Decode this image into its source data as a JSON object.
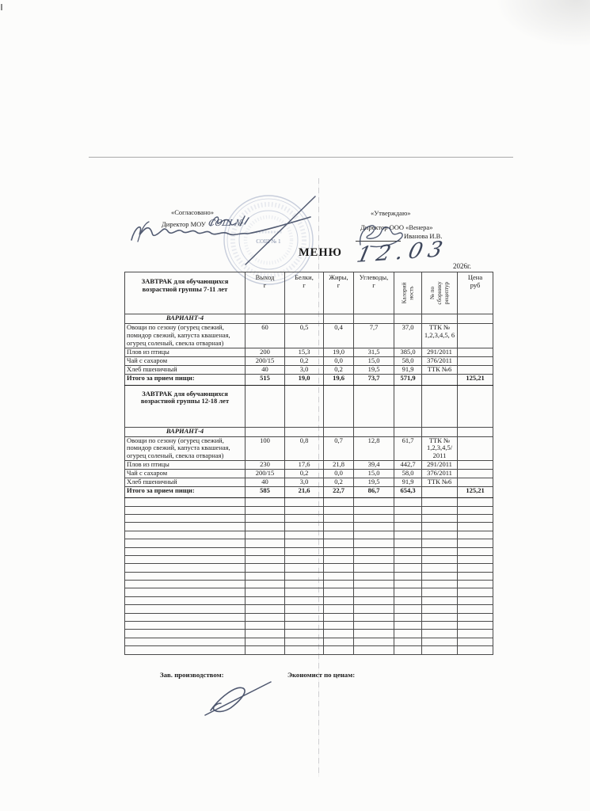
{
  "document": {
    "agreed": {
      "label": "«Согласовано»",
      "role": "Директор МОУ",
      "school_handwritten": "СОШ №"
    },
    "approved": {
      "label": "«Утверждаю»",
      "role": "Директор ООО «Венера»",
      "name": "Иванова И.В."
    },
    "title": "МЕНЮ",
    "date_handwritten": "12.03",
    "year": "2026г.",
    "stamp": {
      "center_text": "СОШ № 1"
    },
    "footer": {
      "left_label": "Зав. производством:",
      "right_label": "Экономист по ценам:"
    }
  },
  "table": {
    "headers": [
      {
        "text": "ЗАВТРАК для обучающихся\nвозрастной группы 7-11 лет"
      },
      {
        "text": "Выход\nг"
      },
      {
        "text": "Белки,\nг"
      },
      {
        "text": "Жиры,\nг"
      },
      {
        "text": "Углеводы,\nг"
      },
      {
        "text": "Калорий\nность",
        "rotated": true
      },
      {
        "text": "№ по\nсборнику\nрецептур",
        "rotated": true
      },
      {
        "text": "Цена\nруб"
      }
    ],
    "rows": [
      {
        "style": "variant",
        "cells": [
          "ВАРИАНТ-4",
          "",
          "",
          "",
          "",
          "",
          "",
          ""
        ]
      },
      {
        "style": "dish",
        "cells": [
          "Овощи по сезону (огурец свежий, помидор свежий, капуста квашеная, огурец соленый, свекла отварная)",
          "60",
          "0,5",
          "0,4",
          "7,7",
          "37,0",
          "ТТК № 1,2,3,4,5, 6",
          ""
        ]
      },
      {
        "style": "dish",
        "cells": [
          "Плов из птицы",
          "200",
          "15,3",
          "19,0",
          "31,5",
          "385,0",
          "291/2011",
          ""
        ]
      },
      {
        "style": "dish",
        "cells": [
          "Чай с сахаром",
          "200/15",
          "0,2",
          "0,0",
          "15,0",
          "58,0",
          "376/2011",
          ""
        ]
      },
      {
        "style": "dish",
        "cells": [
          "Хлеб пшеничный",
          "40",
          "3,0",
          "0,2",
          "19,5",
          "91,9",
          "ТТК №6",
          ""
        ]
      },
      {
        "style": "total",
        "cells": [
          "Итого за прием пищи:",
          "515",
          "19,0",
          "19,6",
          "73,7",
          "571,9",
          "",
          "125,21"
        ]
      },
      {
        "style": "section",
        "cells": [
          "ЗАВТРАК для обучающихся\nвозрастной группы 12-18 лет",
          "",
          "",
          "",
          "",
          "",
          "",
          ""
        ]
      },
      {
        "style": "variant",
        "cells": [
          "ВАРИАНТ-4",
          "",
          "",
          "",
          "",
          "",
          "",
          ""
        ]
      },
      {
        "style": "dish",
        "cells": [
          "Овощи по сезону (огурец свежий, помидор свежий, капуста квашеная, огурец соленый, свекла отварная)",
          "100",
          "0,8",
          "0,7",
          "12,8",
          "61,7",
          "ТТК № 1,2,3,4,5/ 2011",
          ""
        ]
      },
      {
        "style": "dish",
        "cells": [
          "Плов из птицы",
          "230",
          "17,6",
          "21,8",
          "39,4",
          "442,7",
          "291/2011",
          ""
        ]
      },
      {
        "style": "dish",
        "cells": [
          "Чай с сахаром",
          "200/15",
          "0,2",
          "0,0",
          "15,0",
          "58,0",
          "376/2011",
          ""
        ]
      },
      {
        "style": "dish",
        "cells": [
          "Хлеб пшеничный",
          "40",
          "3,0",
          "0,2",
          "19,5",
          "91,9",
          "ТТК №6",
          ""
        ]
      },
      {
        "style": "total",
        "cells": [
          "Итого за прием пищи:",
          "585",
          "21,6",
          "22,7",
          "86,7",
          "654,3",
          "",
          "125,21"
        ]
      }
    ],
    "empty_rows": 19
  }
}
